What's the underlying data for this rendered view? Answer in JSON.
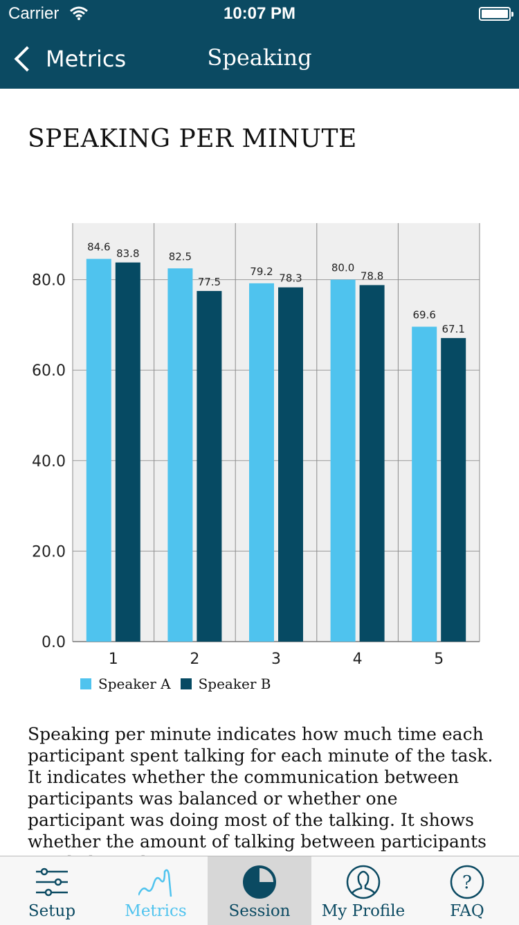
{
  "status_bar": {
    "carrier": "Carrier",
    "time": "10:07 PM"
  },
  "nav": {
    "back_label": "Metrics",
    "title": "Speaking"
  },
  "page_title": "SPEAKING PER MINUTE",
  "colors": {
    "header": "#0b4a62",
    "speaker_a": "#4fc3ee",
    "speaker_b": "#064a63",
    "tab_active": "#4fc3ee"
  },
  "chart_data": {
    "type": "bar",
    "categories": [
      "1",
      "2",
      "3",
      "4",
      "5"
    ],
    "series": [
      {
        "name": "Speaker A",
        "values": [
          84.6,
          82.5,
          79.2,
          80.0,
          69.6
        ],
        "labels": [
          "84.6",
          "82.5",
          "79.2",
          "80.0",
          "69.6"
        ]
      },
      {
        "name": "Speaker B",
        "values": [
          83.8,
          77.5,
          78.3,
          78.8,
          67.1
        ],
        "labels": [
          "83.8",
          "77.5",
          "78.3",
          "78.8",
          "67.1"
        ]
      }
    ],
    "y_ticks": [
      "0.0",
      "20.0",
      "40.0",
      "60.0",
      "80.0"
    ],
    "ylim": [
      0,
      92.5
    ],
    "grid": true,
    "legend": "bottom-left"
  },
  "description": "Speaking per minute indicates how much time each participant spent talking for each minute of the task. It indicates whether the communication between participants was balanced or whether one participant was doing most of the talking. It shows whether the amount of talking between participants was balanced.",
  "tabs": [
    {
      "label": "Setup",
      "icon": "sliders-icon"
    },
    {
      "label": "Metrics",
      "icon": "wave-icon"
    },
    {
      "label": "Session",
      "icon": "pie-icon"
    },
    {
      "label": "My Profile",
      "icon": "profile-icon"
    },
    {
      "label": "FAQ",
      "icon": "question-icon"
    }
  ]
}
